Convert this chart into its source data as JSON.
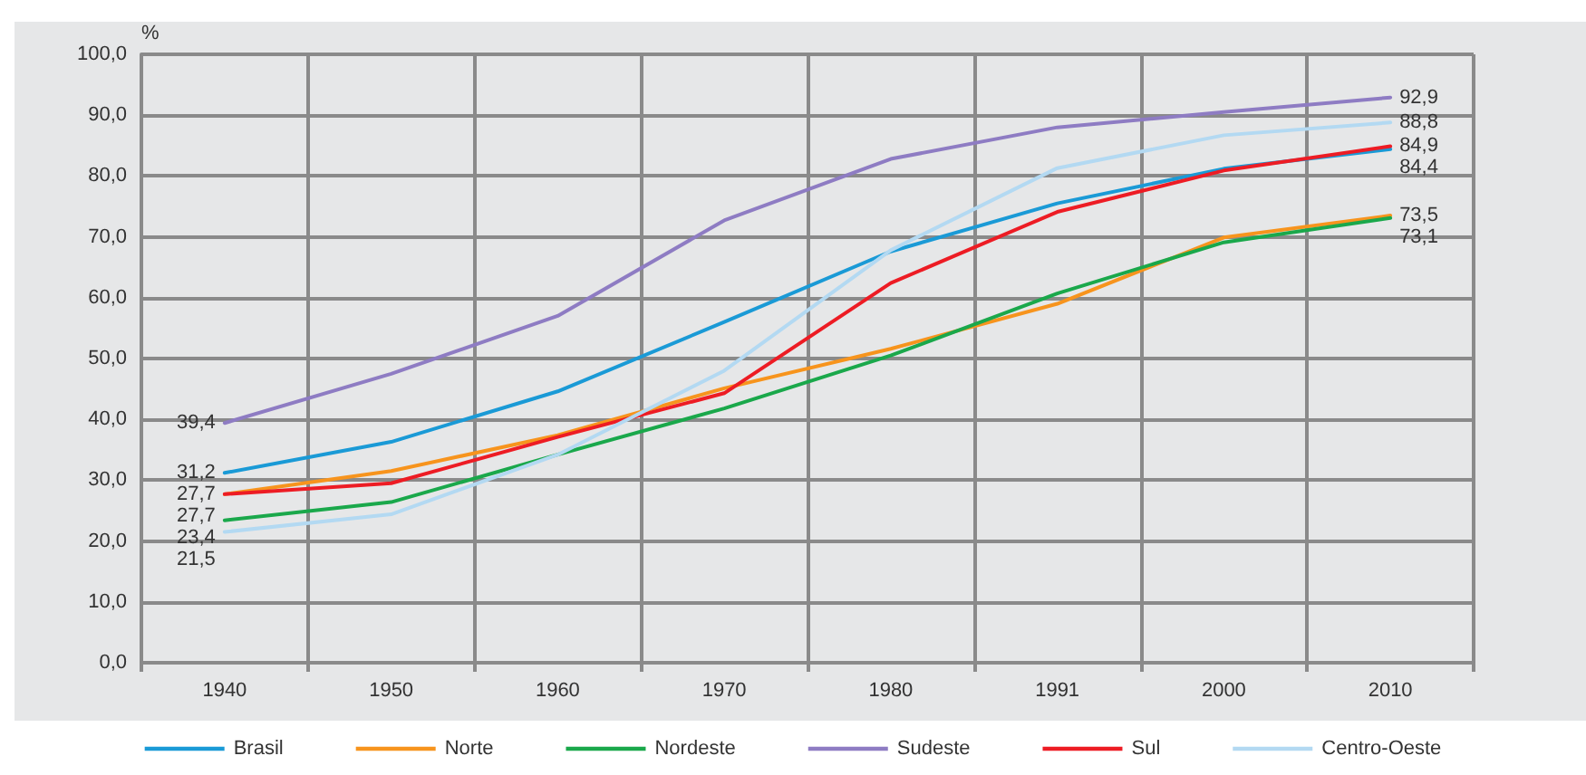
{
  "chart_data": {
    "type": "line",
    "ylabel": "%",
    "categories": [
      "1940",
      "1950",
      "1960",
      "1970",
      "1980",
      "1991",
      "2000",
      "2010"
    ],
    "ylim": [
      0,
      100
    ],
    "yticks": [
      {
        "value": 0,
        "label": "0,0"
      },
      {
        "value": 10,
        "label": "10,0"
      },
      {
        "value": 20,
        "label": "20,0"
      },
      {
        "value": 30,
        "label": "30,0"
      },
      {
        "value": 40,
        "label": "40,0"
      },
      {
        "value": 50,
        "label": "50,0"
      },
      {
        "value": 60,
        "label": "60,0"
      },
      {
        "value": 70,
        "label": "70,0"
      },
      {
        "value": 80,
        "label": "80,0"
      },
      {
        "value": 90,
        "label": "90,0"
      },
      {
        "value": 100,
        "label": "100,0"
      }
    ],
    "grid": true,
    "legend": "bottom",
    "marker": "none",
    "line_style": "solid",
    "series": [
      {
        "name": "Brasil",
        "color": "#1a9ad6",
        "values": [
          31.2,
          36.3,
          44.6,
          56.0,
          67.6,
          75.5,
          81.2,
          84.4
        ],
        "value_labels": [
          "31,2",
          null,
          null,
          null,
          null,
          null,
          null,
          "84,4"
        ]
      },
      {
        "name": "Norte",
        "color": "#f7941d",
        "values": [
          27.7,
          31.5,
          37.4,
          45.1,
          51.6,
          59.0,
          69.9,
          73.5
        ],
        "value_labels": [
          "27,7",
          null,
          null,
          null,
          null,
          null,
          null,
          "73,5"
        ]
      },
      {
        "name": "Nordeste",
        "color": "#1aa84b",
        "values": [
          23.4,
          26.4,
          34.2,
          41.8,
          50.5,
          60.7,
          69.1,
          73.1
        ],
        "value_labels": [
          "23,4",
          null,
          null,
          null,
          null,
          null,
          null,
          "73,1"
        ]
      },
      {
        "name": "Sudeste",
        "color": "#8e7cc3",
        "values": [
          39.4,
          47.5,
          57.0,
          72.7,
          82.8,
          88.0,
          90.5,
          92.9
        ],
        "value_labels": [
          "39,4",
          null,
          null,
          null,
          null,
          null,
          null,
          "92,9"
        ]
      },
      {
        "name": "Sul",
        "color": "#ed1c24",
        "values": [
          27.7,
          29.5,
          37.1,
          44.3,
          62.4,
          74.1,
          80.9,
          84.9
        ],
        "value_labels": [
          "27,7",
          null,
          null,
          null,
          null,
          null,
          null,
          "84,9"
        ]
      },
      {
        "name": "Centro-Oeste",
        "color": "#b3d9f2",
        "values": [
          21.5,
          24.4,
          34.2,
          48.0,
          67.8,
          81.3,
          86.7,
          88.8
        ],
        "value_labels": [
          "21,5",
          null,
          null,
          null,
          null,
          null,
          null,
          "88,8"
        ]
      }
    ]
  }
}
